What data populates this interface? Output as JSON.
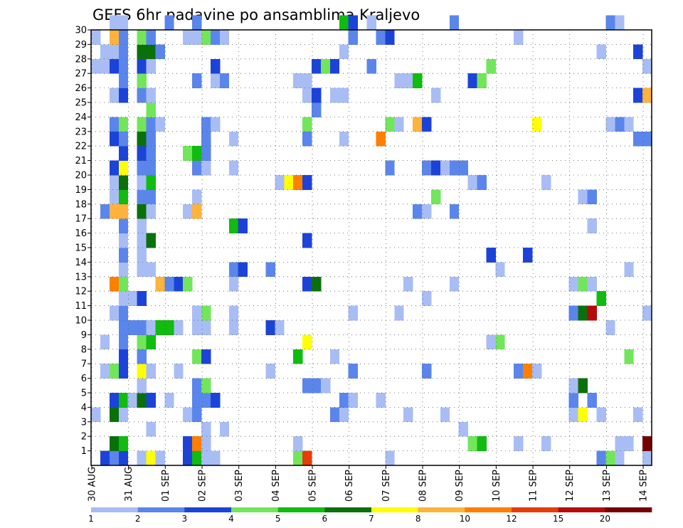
{
  "chart_data": {
    "type": "heatmap",
    "title": "GEFS 6hr padavine po ansamblima Kraljevo",
    "xlabel": "",
    "ylabel": "",
    "x_tick_labels": [
      "30 AUG",
      "31 AUG",
      "01 SEP",
      "02 SEP",
      "03 SEP",
      "04 SEP",
      "05 SEP",
      "06 SEP",
      "07 SEP",
      "08 SEP",
      "09 SEP",
      "10 SEP",
      "11 SEP",
      "12 SEP",
      "13 SEP",
      "14 SEP"
    ],
    "x_range_steps": [
      0,
      61
    ],
    "y_tick_labels": [
      "1",
      "2",
      "3",
      "4",
      "5",
      "6",
      "7",
      "8",
      "9",
      "10",
      "11",
      "12",
      "13",
      "14",
      "15",
      "16",
      "17",
      "18",
      "19",
      "20",
      "21",
      "22",
      "23",
      "24",
      "25",
      "26",
      "27",
      "28",
      "29",
      "30"
    ],
    "y_range_members": [
      0,
      30
    ],
    "grid": "dotted",
    "colorbar": {
      "labels": [
        "1",
        "2",
        "3",
        "4",
        "5",
        "6",
        "7",
        "8",
        "10",
        "12",
        "15",
        "20"
      ],
      "colors": [
        "#a9bdf5",
        "#5a86ec",
        "#1c43d8",
        "#72e65a",
        "#0fbc0f",
        "#0a700a",
        "#ffff00",
        "#ffb23c",
        "#ff7f00",
        "#e63c0a",
        "#b40a0a",
        "#780000"
      ]
    },
    "cells": [
      [
        0,
        0,
        "#ffffff"
      ],
      [
        1,
        0,
        "#1c43d8"
      ],
      [
        2,
        0,
        "#5a86ec"
      ],
      [
        3,
        0,
        "#1c43d8"
      ],
      [
        5,
        0,
        "#a9bdf5"
      ],
      [
        6,
        0,
        "#ffff00"
      ],
      [
        7,
        0,
        "#a9bdf5"
      ],
      [
        10,
        0,
        "#1c43d8"
      ],
      [
        11,
        0,
        "#0fbc0f"
      ],
      [
        12,
        0,
        "#a9bdf5"
      ],
      [
        13,
        0,
        "#a9bdf5"
      ],
      [
        22,
        0,
        "#72e65a"
      ],
      [
        23,
        0,
        "#e63c0a"
      ],
      [
        32,
        0,
        "#a9bdf5"
      ],
      [
        55,
        0,
        "#5a86ec"
      ],
      [
        56,
        0,
        "#72e65a"
      ],
      [
        57,
        0,
        "#a9bdf5"
      ],
      [
        60,
        0,
        "#a9bdf5"
      ],
      [
        2,
        1,
        "#0a700a"
      ],
      [
        3,
        1,
        "#0fbc0f"
      ],
      [
        10,
        1,
        "#1c43d8"
      ],
      [
        11,
        1,
        "#ff7f00"
      ],
      [
        12,
        1,
        "#a9bdf5"
      ],
      [
        22,
        1,
        "#a9bdf5"
      ],
      [
        41,
        1,
        "#72e65a"
      ],
      [
        42,
        1,
        "#0fbc0f"
      ],
      [
        46,
        1,
        "#a9bdf5"
      ],
      [
        49,
        1,
        "#a9bdf5"
      ],
      [
        57,
        1,
        "#a9bdf5"
      ],
      [
        58,
        1,
        "#a9bdf5"
      ],
      [
        60,
        1,
        "#780000"
      ],
      [
        6,
        2,
        "#a9bdf5"
      ],
      [
        12,
        2,
        "#a9bdf5"
      ],
      [
        14,
        2,
        "#a9bdf5"
      ],
      [
        40,
        2,
        "#a9bdf5"
      ],
      [
        0,
        3,
        "#a9bdf5"
      ],
      [
        2,
        3,
        "#0a700a"
      ],
      [
        3,
        3,
        "#a9bdf5"
      ],
      [
        10,
        3,
        "#a9bdf5"
      ],
      [
        11,
        3,
        "#5a86ec"
      ],
      [
        26,
        3,
        "#5a86ec"
      ],
      [
        27,
        3,
        "#a9bdf5"
      ],
      [
        34,
        3,
        "#a9bdf5"
      ],
      [
        38,
        3,
        "#a9bdf5"
      ],
      [
        52,
        3,
        "#a9bdf5"
      ],
      [
        53,
        3,
        "#ffff00"
      ],
      [
        55,
        3,
        "#a9bdf5"
      ],
      [
        59,
        3,
        "#a9bdf5"
      ],
      [
        2,
        4,
        "#1c43d8"
      ],
      [
        3,
        4,
        "#0fbc0f"
      ],
      [
        4,
        4,
        "#a9bdf5"
      ],
      [
        5,
        4,
        "#0a700a"
      ],
      [
        6,
        4,
        "#1c43d8"
      ],
      [
        8,
        4,
        "#a9bdf5"
      ],
      [
        11,
        4,
        "#5a86ec"
      ],
      [
        12,
        4,
        "#5a86ec"
      ],
      [
        13,
        4,
        "#1c43d8"
      ],
      [
        27,
        4,
        "#5a86ec"
      ],
      [
        28,
        4,
        "#a9bdf5"
      ],
      [
        31,
        4,
        "#a9bdf5"
      ],
      [
        52,
        4,
        "#5a86ec"
      ],
      [
        54,
        4,
        "#5a86ec"
      ],
      [
        5,
        5,
        "#a9bdf5"
      ],
      [
        11,
        5,
        "#5a86ec"
      ],
      [
        12,
        5,
        "#72e65a"
      ],
      [
        23,
        5,
        "#5a86ec"
      ],
      [
        24,
        5,
        "#5a86ec"
      ],
      [
        25,
        5,
        "#a9bdf5"
      ],
      [
        52,
        5,
        "#a9bdf5"
      ],
      [
        53,
        5,
        "#0a700a"
      ],
      [
        1,
        6,
        "#a9bdf5"
      ],
      [
        2,
        6,
        "#72e65a"
      ],
      [
        3,
        6,
        "#1c43d8"
      ],
      [
        5,
        6,
        "#ffff00"
      ],
      [
        6,
        6,
        "#a9bdf5"
      ],
      [
        9,
        6,
        "#a9bdf5"
      ],
      [
        19,
        6,
        "#a9bdf5"
      ],
      [
        28,
        6,
        "#5a86ec"
      ],
      [
        36,
        6,
        "#5a86ec"
      ],
      [
        46,
        6,
        "#5a86ec"
      ],
      [
        47,
        6,
        "#ff7f00"
      ],
      [
        48,
        6,
        "#a9bdf5"
      ],
      [
        3,
        7,
        "#1c43d8"
      ],
      [
        5,
        7,
        "#5a86ec"
      ],
      [
        11,
        7,
        "#72e65a"
      ],
      [
        12,
        7,
        "#1c43d8"
      ],
      [
        22,
        7,
        "#0fbc0f"
      ],
      [
        26,
        7,
        "#a9bdf5"
      ],
      [
        58,
        7,
        "#72e65a"
      ],
      [
        1,
        8,
        "#a9bdf5"
      ],
      [
        3,
        8,
        "#5a86ec"
      ],
      [
        5,
        8,
        "#72e65a"
      ],
      [
        6,
        8,
        "#0fbc0f"
      ],
      [
        23,
        8,
        "#ffff00"
      ],
      [
        43,
        8,
        "#a9bdf5"
      ],
      [
        44,
        8,
        "#72e65a"
      ],
      [
        3,
        9,
        "#5a86ec"
      ],
      [
        4,
        9,
        "#5a86ec"
      ],
      [
        5,
        9,
        "#5a86ec"
      ],
      [
        6,
        9,
        "#a9bdf5"
      ],
      [
        7,
        9,
        "#0fbc0f"
      ],
      [
        8,
        9,
        "#0fbc0f"
      ],
      [
        9,
        9,
        "#a9bdf5"
      ],
      [
        11,
        9,
        "#a9bdf5"
      ],
      [
        12,
        9,
        "#a9bdf5"
      ],
      [
        15,
        9,
        "#a9bdf5"
      ],
      [
        19,
        9,
        "#1c43d8"
      ],
      [
        20,
        9,
        "#a9bdf5"
      ],
      [
        56,
        9,
        "#a9bdf5"
      ],
      [
        2,
        10,
        "#a9bdf5"
      ],
      [
        3,
        10,
        "#5a86ec"
      ],
      [
        11,
        10,
        "#a9bdf5"
      ],
      [
        12,
        10,
        "#72e65a"
      ],
      [
        15,
        10,
        "#a9bdf5"
      ],
      [
        28,
        10,
        "#a9bdf5"
      ],
      [
        33,
        10,
        "#a9bdf5"
      ],
      [
        52,
        10,
        "#5a86ec"
      ],
      [
        53,
        10,
        "#0a700a"
      ],
      [
        54,
        10,
        "#b40a0a"
      ],
      [
        60,
        10,
        "#a9bdf5"
      ],
      [
        3,
        11,
        "#a9bdf5"
      ],
      [
        4,
        11,
        "#a9bdf5"
      ],
      [
        5,
        11,
        "#1c43d8"
      ],
      [
        36,
        11,
        "#a9bdf5"
      ],
      [
        55,
        11,
        "#0fbc0f"
      ],
      [
        2,
        12,
        "#ff7f00"
      ],
      [
        3,
        12,
        "#72e65a"
      ],
      [
        7,
        12,
        "#ffb23c"
      ],
      [
        8,
        12,
        "#5a86ec"
      ],
      [
        9,
        12,
        "#1c43d8"
      ],
      [
        10,
        12,
        "#72e65a"
      ],
      [
        15,
        12,
        "#a9bdf5"
      ],
      [
        23,
        12,
        "#1c43d8"
      ],
      [
        24,
        12,
        "#0a700a"
      ],
      [
        34,
        12,
        "#a9bdf5"
      ],
      [
        39,
        12,
        "#a9bdf5"
      ],
      [
        52,
        12,
        "#a9bdf5"
      ],
      [
        53,
        12,
        "#72e65a"
      ],
      [
        54,
        12,
        "#a9bdf5"
      ],
      [
        3,
        13,
        "#a9bdf5"
      ],
      [
        5,
        13,
        "#a9bdf5"
      ],
      [
        6,
        13,
        "#a9bdf5"
      ],
      [
        15,
        13,
        "#5a86ec"
      ],
      [
        16,
        13,
        "#1c43d8"
      ],
      [
        19,
        13,
        "#5a86ec"
      ],
      [
        44,
        13,
        "#a9bdf5"
      ],
      [
        58,
        13,
        "#a9bdf5"
      ],
      [
        3,
        14,
        "#5a86ec"
      ],
      [
        5,
        14,
        "#a9bdf5"
      ],
      [
        43,
        14,
        "#1c43d8"
      ],
      [
        47,
        14,
        "#1c43d8"
      ],
      [
        3,
        15,
        "#a9bdf5"
      ],
      [
        5,
        15,
        "#a9bdf5"
      ],
      [
        6,
        15,
        "#0a700a"
      ],
      [
        23,
        15,
        "#1c43d8"
      ],
      [
        3,
        16,
        "#5a86ec"
      ],
      [
        5,
        16,
        "#a9bdf5"
      ],
      [
        15,
        16,
        "#0fbc0f"
      ],
      [
        16,
        16,
        "#1c43d8"
      ],
      [
        54,
        16,
        "#a9bdf5"
      ],
      [
        1,
        17,
        "#5a86ec"
      ],
      [
        2,
        17,
        "#ffb23c"
      ],
      [
        3,
        17,
        "#ffb23c"
      ],
      [
        5,
        17,
        "#0a700a"
      ],
      [
        6,
        17,
        "#a9bdf5"
      ],
      [
        10,
        17,
        "#a9bdf5"
      ],
      [
        11,
        17,
        "#ffb23c"
      ],
      [
        35,
        17,
        "#5a86ec"
      ],
      [
        36,
        17,
        "#a9bdf5"
      ],
      [
        39,
        17,
        "#5a86ec"
      ],
      [
        2,
        18,
        "#a9bdf5"
      ],
      [
        3,
        18,
        "#0fbc0f"
      ],
      [
        5,
        18,
        "#5a86ec"
      ],
      [
        6,
        18,
        "#5a86ec"
      ],
      [
        11,
        18,
        "#a9bdf5"
      ],
      [
        37,
        18,
        "#72e65a"
      ],
      [
        53,
        18,
        "#a9bdf5"
      ],
      [
        54,
        18,
        "#5a86ec"
      ],
      [
        2,
        19,
        "#a9bdf5"
      ],
      [
        3,
        19,
        "#0a700a"
      ],
      [
        5,
        19,
        "#a9bdf5"
      ],
      [
        6,
        19,
        "#0fbc0f"
      ],
      [
        20,
        19,
        "#a9bdf5"
      ],
      [
        21,
        19,
        "#ffff00"
      ],
      [
        22,
        19,
        "#ff7f00"
      ],
      [
        23,
        19,
        "#1c43d8"
      ],
      [
        41,
        19,
        "#a9bdf5"
      ],
      [
        42,
        19,
        "#5a86ec"
      ],
      [
        49,
        19,
        "#a9bdf5"
      ],
      [
        2,
        20,
        "#1c43d8"
      ],
      [
        3,
        20,
        "#ffff00"
      ],
      [
        5,
        20,
        "#5a86ec"
      ],
      [
        6,
        20,
        "#5a86ec"
      ],
      [
        11,
        20,
        "#5a86ec"
      ],
      [
        12,
        20,
        "#a9bdf5"
      ],
      [
        15,
        20,
        "#a9bdf5"
      ],
      [
        32,
        20,
        "#5a86ec"
      ],
      [
        36,
        20,
        "#5a86ec"
      ],
      [
        37,
        20,
        "#1c43d8"
      ],
      [
        38,
        20,
        "#a9bdf5"
      ],
      [
        39,
        20,
        "#5a86ec"
      ],
      [
        40,
        20,
        "#5a86ec"
      ],
      [
        3,
        21,
        "#1c43d8"
      ],
      [
        5,
        21,
        "#1c43d8"
      ],
      [
        6,
        21,
        "#5a86ec"
      ],
      [
        10,
        21,
        "#72e65a"
      ],
      [
        11,
        21,
        "#0fbc0f"
      ],
      [
        12,
        21,
        "#5a86ec"
      ],
      [
        2,
        22,
        "#1c43d8"
      ],
      [
        3,
        22,
        "#5a86ec"
      ],
      [
        5,
        22,
        "#0a700a"
      ],
      [
        6,
        22,
        "#5a86ec"
      ],
      [
        12,
        22,
        "#5a86ec"
      ],
      [
        15,
        22,
        "#a9bdf5"
      ],
      [
        23,
        22,
        "#5a86ec"
      ],
      [
        27,
        22,
        "#a9bdf5"
      ],
      [
        31,
        22,
        "#ff7f00"
      ],
      [
        59,
        22,
        "#5a86ec"
      ],
      [
        60,
        22,
        "#5a86ec"
      ],
      [
        2,
        23,
        "#5a86ec"
      ],
      [
        3,
        23,
        "#72e65a"
      ],
      [
        5,
        23,
        "#72e65a"
      ],
      [
        6,
        23,
        "#5a86ec"
      ],
      [
        7,
        23,
        "#a9bdf5"
      ],
      [
        12,
        23,
        "#5a86ec"
      ],
      [
        13,
        23,
        "#a9bdf5"
      ],
      [
        23,
        23,
        "#72e65a"
      ],
      [
        32,
        23,
        "#72e65a"
      ],
      [
        33,
        23,
        "#a9bdf5"
      ],
      [
        35,
        23,
        "#ffb23c"
      ],
      [
        36,
        23,
        "#1c43d8"
      ],
      [
        48,
        23,
        "#ffff00"
      ],
      [
        56,
        23,
        "#a9bdf5"
      ],
      [
        57,
        23,
        "#5a86ec"
      ],
      [
        58,
        23,
        "#a9bdf5"
      ],
      [
        6,
        24,
        "#72e65a"
      ],
      [
        24,
        24,
        "#5a86ec"
      ],
      [
        2,
        25,
        "#a9bdf5"
      ],
      [
        3,
        25,
        "#1c43d8"
      ],
      [
        5,
        25,
        "#5a86ec"
      ],
      [
        6,
        25,
        "#a9bdf5"
      ],
      [
        23,
        25,
        "#a9bdf5"
      ],
      [
        24,
        25,
        "#1c43d8"
      ],
      [
        26,
        25,
        "#a9bdf5"
      ],
      [
        27,
        25,
        "#a9bdf5"
      ],
      [
        37,
        25,
        "#a9bdf5"
      ],
      [
        59,
        25,
        "#1c43d8"
      ],
      [
        60,
        25,
        "#ffb23c"
      ],
      [
        3,
        26,
        "#5a86ec"
      ],
      [
        5,
        26,
        "#72e65a"
      ],
      [
        11,
        26,
        "#5a86ec"
      ],
      [
        13,
        26,
        "#a9bdf5"
      ],
      [
        14,
        26,
        "#5a86ec"
      ],
      [
        22,
        26,
        "#a9bdf5"
      ],
      [
        23,
        26,
        "#a9bdf5"
      ],
      [
        33,
        26,
        "#a9bdf5"
      ],
      [
        34,
        26,
        "#a9bdf5"
      ],
      [
        35,
        26,
        "#0fbc0f"
      ],
      [
        41,
        26,
        "#1c43d8"
      ],
      [
        42,
        26,
        "#72e65a"
      ],
      [
        0,
        27,
        "#a9bdf5"
      ],
      [
        1,
        27,
        "#a9bdf5"
      ],
      [
        2,
        27,
        "#1c43d8"
      ],
      [
        3,
        27,
        "#5a86ec"
      ],
      [
        5,
        27,
        "#1c43d8"
      ],
      [
        6,
        27,
        "#a9bdf5"
      ],
      [
        13,
        27,
        "#1c43d8"
      ],
      [
        24,
        27,
        "#1c43d8"
      ],
      [
        25,
        27,
        "#72e65a"
      ],
      [
        26,
        27,
        "#1c43d8"
      ],
      [
        30,
        27,
        "#5a86ec"
      ],
      [
        43,
        27,
        "#72e65a"
      ],
      [
        60,
        27,
        "#a9bdf5"
      ],
      [
        1,
        28,
        "#a9bdf5"
      ],
      [
        2,
        28,
        "#a9bdf5"
      ],
      [
        3,
        28,
        "#5a86ec"
      ],
      [
        5,
        28,
        "#0a700a"
      ],
      [
        6,
        28,
        "#0a700a"
      ],
      [
        7,
        28,
        "#5a86ec"
      ],
      [
        27,
        28,
        "#a9bdf5"
      ],
      [
        55,
        28,
        "#a9bdf5"
      ],
      [
        59,
        28,
        "#1c43d8"
      ],
      [
        0,
        29,
        "#a9bdf5"
      ],
      [
        2,
        29,
        "#ffb23c"
      ],
      [
        3,
        29,
        "#5a86ec"
      ],
      [
        5,
        29,
        "#72e65a"
      ],
      [
        6,
        29,
        "#5a86ec"
      ],
      [
        10,
        29,
        "#a9bdf5"
      ],
      [
        11,
        29,
        "#a9bdf5"
      ],
      [
        12,
        29,
        "#72e65a"
      ],
      [
        13,
        29,
        "#5a86ec"
      ],
      [
        14,
        29,
        "#a9bdf5"
      ],
      [
        28,
        29,
        "#5a86ec"
      ],
      [
        31,
        29,
        "#5a86ec"
      ],
      [
        32,
        29,
        "#1c43d8"
      ],
      [
        46,
        29,
        "#a9bdf5"
      ],
      [
        2,
        30,
        "#a9bdf5"
      ],
      [
        3,
        30,
        "#a9bdf5"
      ],
      [
        8,
        30,
        "#5a86ec"
      ],
      [
        11,
        30,
        "#5a86ec"
      ],
      [
        27,
        30,
        "#0fbc0f"
      ],
      [
        28,
        30,
        "#1c43d8"
      ],
      [
        30,
        30,
        "#a9bdf5"
      ],
      [
        39,
        30,
        "#5a86ec"
      ],
      [
        56,
        30,
        "#5a86ec"
      ],
      [
        57,
        30,
        "#a9bdf5"
      ]
    ]
  }
}
